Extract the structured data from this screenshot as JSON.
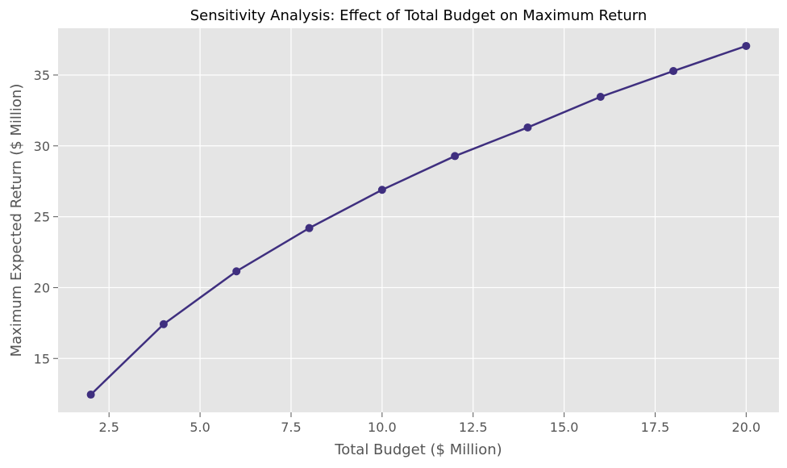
{
  "chart_data": {
    "type": "line",
    "title": "Sensitivity Analysis: Effect of Total Budget on Maximum Return",
    "xlabel": "Total Budget ($ Million)",
    "ylabel": "Maximum Expected Return ($ Million)",
    "x": [
      2,
      4,
      6,
      8,
      10,
      12,
      14,
      16,
      18,
      20
    ],
    "series": [
      {
        "values": [
          12.45,
          17.42,
          21.15,
          24.2,
          26.9,
          29.28,
          31.3,
          33.46,
          35.28,
          37.05
        ]
      }
    ],
    "xlim": [
      1.1,
      20.9
    ],
    "ylim": [
      11.2,
      38.3
    ],
    "xticks": [
      2.5,
      5.0,
      7.5,
      10.0,
      12.5,
      15.0,
      17.5,
      20.0
    ],
    "xtick_labels": [
      "2.5",
      "5.0",
      "7.5",
      "10.0",
      "12.5",
      "15.0",
      "17.5",
      "20.0"
    ],
    "yticks": [
      15,
      20,
      25,
      30,
      35
    ],
    "ytick_labels": [
      "15",
      "20",
      "25",
      "30",
      "35"
    ],
    "grid": true,
    "colors": {
      "line": "#3f2f7f",
      "marker": "#3f2f7f",
      "plot_background": "#e5e5e5",
      "grid": "#ffffff",
      "text": "#555555",
      "title": "#000000"
    }
  }
}
